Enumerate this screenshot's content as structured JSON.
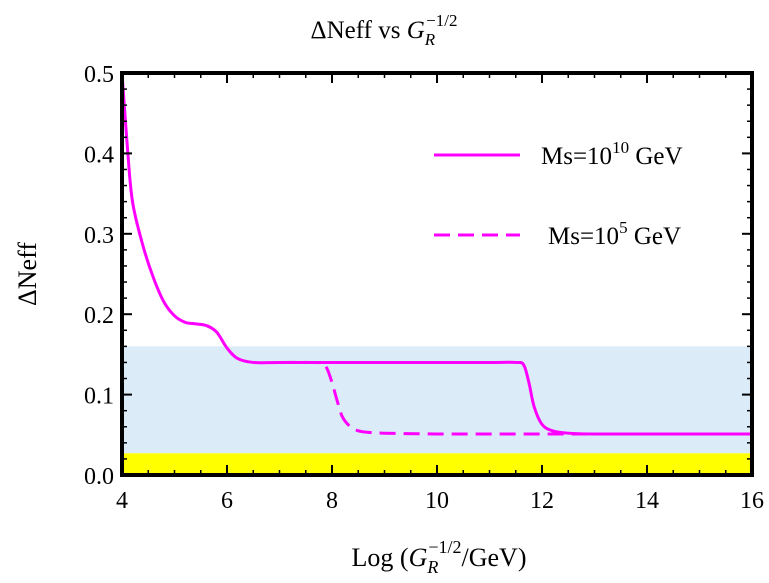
{
  "chart_data": {
    "type": "line",
    "title": {
      "prefix": "ΔNeff vs ",
      "sym": "G",
      "sub": "R",
      "sup": "−1/2"
    },
    "xlabel": {
      "prefix": "Log (",
      "sym": "G",
      "sub": "R",
      "sup": "−1/2",
      "suffix": "/GeV)"
    },
    "ylabel": "ΔNeff",
    "xlim": [
      4,
      16
    ],
    "ylim": [
      0,
      0.5
    ],
    "x_ticks": [
      4,
      6,
      8,
      10,
      12,
      14,
      16
    ],
    "x_tick_labels": [
      "4",
      "6",
      "8",
      "10",
      "12",
      "14",
      "16"
    ],
    "y_ticks": [
      0.0,
      0.1,
      0.2,
      0.3,
      0.4,
      0.5
    ],
    "y_tick_labels": [
      "0.0",
      "0.1",
      "0.2",
      "0.3",
      "0.4",
      "0.5"
    ],
    "grid": false,
    "legend_position": "top-right",
    "bands": [
      {
        "name": "light-blue-band",
        "y_range": [
          0.027,
          0.16
        ],
        "color": "#dcebf8"
      },
      {
        "name": "yellow-band",
        "y_range": [
          0.0,
          0.027
        ],
        "color": "#ffff00"
      }
    ],
    "series": [
      {
        "name": "Ms=10^10 GeV",
        "legend_base": "Ms=10",
        "legend_sup": "10",
        "legend_suffix": " GeV",
        "color": "#ff00ff",
        "dash": "solid",
        "x": [
          4.0,
          4.1,
          4.2,
          4.4,
          4.6,
          4.8,
          5.0,
          5.2,
          5.4,
          5.6,
          5.8,
          6.0,
          6.2,
          6.5,
          7.0,
          8.0,
          9.0,
          10.0,
          11.0,
          11.5,
          11.65,
          11.75,
          11.85,
          12.0,
          12.2,
          12.5,
          13.0,
          14.0,
          15.0,
          16.0
        ],
        "y": [
          0.5,
          0.41,
          0.34,
          0.285,
          0.245,
          0.215,
          0.198,
          0.19,
          0.188,
          0.186,
          0.178,
          0.158,
          0.145,
          0.14,
          0.14,
          0.14,
          0.14,
          0.14,
          0.14,
          0.14,
          0.137,
          0.115,
          0.085,
          0.063,
          0.055,
          0.052,
          0.051,
          0.051,
          0.051,
          0.051
        ]
      },
      {
        "name": "Ms=10^5 GeV",
        "legend_base": "Ms=10",
        "legend_sup": "5",
        "legend_suffix": " GeV",
        "color": "#ff00ff",
        "dash": "dashed",
        "x": [
          7.0,
          7.6,
          7.8,
          7.9,
          8.0,
          8.1,
          8.2,
          8.35,
          8.5,
          8.7,
          9.0,
          10.0,
          11.0,
          12.0,
          13.0,
          14.0,
          15.0,
          16.0
        ],
        "y": [
          0.14,
          0.14,
          0.139,
          0.133,
          0.115,
          0.092,
          0.072,
          0.06,
          0.055,
          0.053,
          0.052,
          0.051,
          0.051,
          0.051,
          0.051,
          0.051,
          0.051,
          0.051
        ]
      }
    ]
  }
}
